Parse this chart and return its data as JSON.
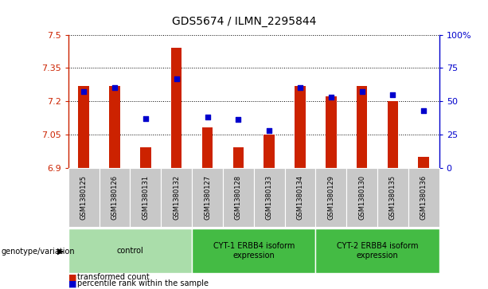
{
  "title": "GDS5674 / ILMN_2295844",
  "samples": [
    "GSM1380125",
    "GSM1380126",
    "GSM1380131",
    "GSM1380132",
    "GSM1380127",
    "GSM1380128",
    "GSM1380133",
    "GSM1380134",
    "GSM1380129",
    "GSM1380130",
    "GSM1380135",
    "GSM1380136"
  ],
  "red_values": [
    7.27,
    7.27,
    6.99,
    7.44,
    7.08,
    6.99,
    7.05,
    7.27,
    7.22,
    7.27,
    7.2,
    6.95
  ],
  "blue_values": [
    57,
    60,
    37,
    67,
    38,
    36,
    28,
    60,
    53,
    57,
    55,
    43
  ],
  "ylim_left": [
    6.9,
    7.5
  ],
  "ylim_right": [
    0,
    100
  ],
  "yticks_left": [
    6.9,
    7.05,
    7.2,
    7.35,
    7.5
  ],
  "yticks_right": [
    0,
    25,
    50,
    75,
    100
  ],
  "ytick_labels_left": [
    "6.9",
    "7.05",
    "7.2",
    "7.35",
    "7.5"
  ],
  "ytick_labels_right": [
    "0",
    "25",
    "50",
    "75",
    "100%"
  ],
  "groups": [
    {
      "label": "control",
      "start": 0,
      "end": 4
    },
    {
      "label": "CYT-1 ERBB4 isoform\nexpression",
      "start": 4,
      "end": 8
    },
    {
      "label": "CYT-2 ERBB4 isoform\nexpression",
      "start": 8,
      "end": 12
    }
  ],
  "bar_color": "#cc2200",
  "dot_color": "#0000cc",
  "background_plot": "#ffffff",
  "background_xtick": "#c8c8c8",
  "group_color_light": "#aaddaa",
  "group_color_dark": "#44bb44",
  "left_axis_color": "#cc2200",
  "right_axis_color": "#0000cc",
  "title_fontsize": 10,
  "legend_label_red": "transformed count",
  "legend_label_blue": "percentile rank within the sample",
  "genotype_label": "genotype/variation",
  "bar_width": 0.35,
  "base_value": 6.9
}
